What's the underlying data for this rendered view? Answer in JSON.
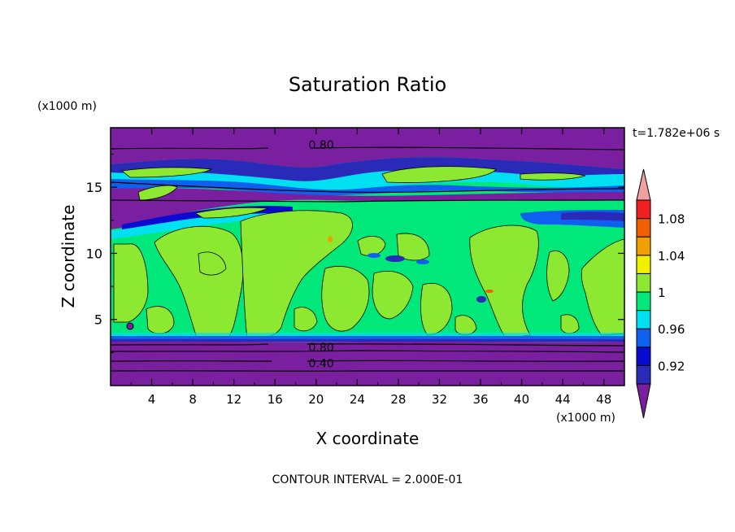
{
  "chart_data": {
    "type": "heatmap",
    "title": "Saturation Ratio",
    "xlabel": "X coordinate",
    "ylabel": "Z coordinate",
    "x_unit": "(x1000 m)",
    "y_unit": "(x1000 m)",
    "time_label": "t=1.782e+06 s",
    "footer": "CONTOUR INTERVAL = 2.000E-01",
    "xlim": [
      0,
      50
    ],
    "ylim": [
      0,
      19.5
    ],
    "x_ticks": [
      4,
      8,
      12,
      16,
      20,
      24,
      28,
      32,
      36,
      40,
      44,
      48
    ],
    "y_ticks": [
      5,
      10,
      15
    ],
    "contour_labels": [
      {
        "text": "0.80",
        "x": 20.5,
        "y": 18.2
      },
      {
        "text": "0.80",
        "x": 20.5,
        "y": 2.9
      },
      {
        "text": "0.40",
        "x": 20.5,
        "y": 1.7
      }
    ],
    "colorbar": {
      "labels": [
        "1.08",
        "1.04",
        "1",
        "0.96",
        "0.92"
      ],
      "levels": [
        0.9,
        0.92,
        0.94,
        0.96,
        0.98,
        1.0,
        1.02,
        1.04,
        1.06,
        1.08,
        1.1
      ],
      "colors": [
        "#7a1fa0",
        "#2a2ab8",
        "#0a0ad0",
        "#1060f0",
        "#00e0f0",
        "#00e87a",
        "#8ce830",
        "#f0f000",
        "#f0a000",
        "#f06000",
        "#f02020",
        "#f0a0a0"
      ]
    }
  }
}
